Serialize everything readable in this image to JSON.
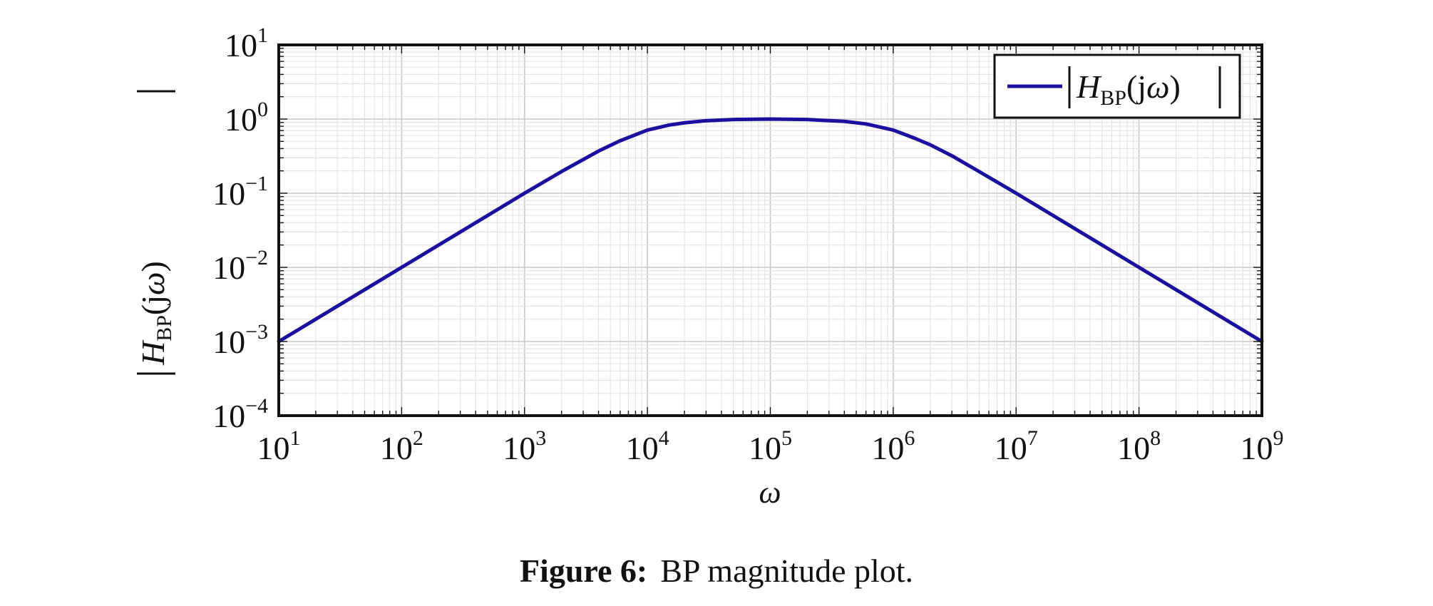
{
  "chart_data": {
    "type": "line",
    "xscale": "log",
    "yscale": "log",
    "xlim": [
      10,
      1000000000
    ],
    "ylim": [
      0.0001,
      10
    ],
    "xlabel": "ω",
    "ylabel": "|H_BP(jω)|",
    "grid": true,
    "legend_position": "top-right",
    "x_ticks": [
      {
        "base": "10",
        "exp": "1"
      },
      {
        "base": "10",
        "exp": "2"
      },
      {
        "base": "10",
        "exp": "3"
      },
      {
        "base": "10",
        "exp": "4"
      },
      {
        "base": "10",
        "exp": "5"
      },
      {
        "base": "10",
        "exp": "6"
      },
      {
        "base": "10",
        "exp": "7"
      },
      {
        "base": "10",
        "exp": "8"
      },
      {
        "base": "10",
        "exp": "9"
      }
    ],
    "y_ticks": [
      {
        "base": "10",
        "exp": "1"
      },
      {
        "base": "10",
        "exp": "0"
      },
      {
        "base": "10",
        "exp": "−1"
      },
      {
        "base": "10",
        "exp": "−2"
      },
      {
        "base": "10",
        "exp": "−3"
      },
      {
        "base": "10",
        "exp": "−4"
      }
    ],
    "series": [
      {
        "legend": "|H_BP(jω)|",
        "color": "#1a0f9e",
        "x": [
          10,
          100,
          1000,
          2000,
          4000,
          6000,
          10000,
          15000,
          20000,
          30000,
          50000,
          100000,
          200000,
          400000,
          600000,
          1000000,
          1500000,
          2000000,
          3000000,
          5000000,
          10000000,
          100000000,
          1000000000
        ],
        "y": [
          0.001,
          0.01,
          0.1,
          0.196,
          0.37,
          0.51,
          0.71,
          0.83,
          0.89,
          0.95,
          0.985,
          1.0,
          0.985,
          0.93,
          0.86,
          0.71,
          0.55,
          0.45,
          0.32,
          0.196,
          0.1,
          0.01,
          0.001
        ]
      }
    ]
  },
  "caption": {
    "label": "Figure 6:",
    "text": "BP magnitude plot."
  },
  "colors": {
    "axis": "#111111",
    "grid_major": "#c8c8c8",
    "grid_minor": "#e4e4e4",
    "line": "#1a0f9e"
  }
}
